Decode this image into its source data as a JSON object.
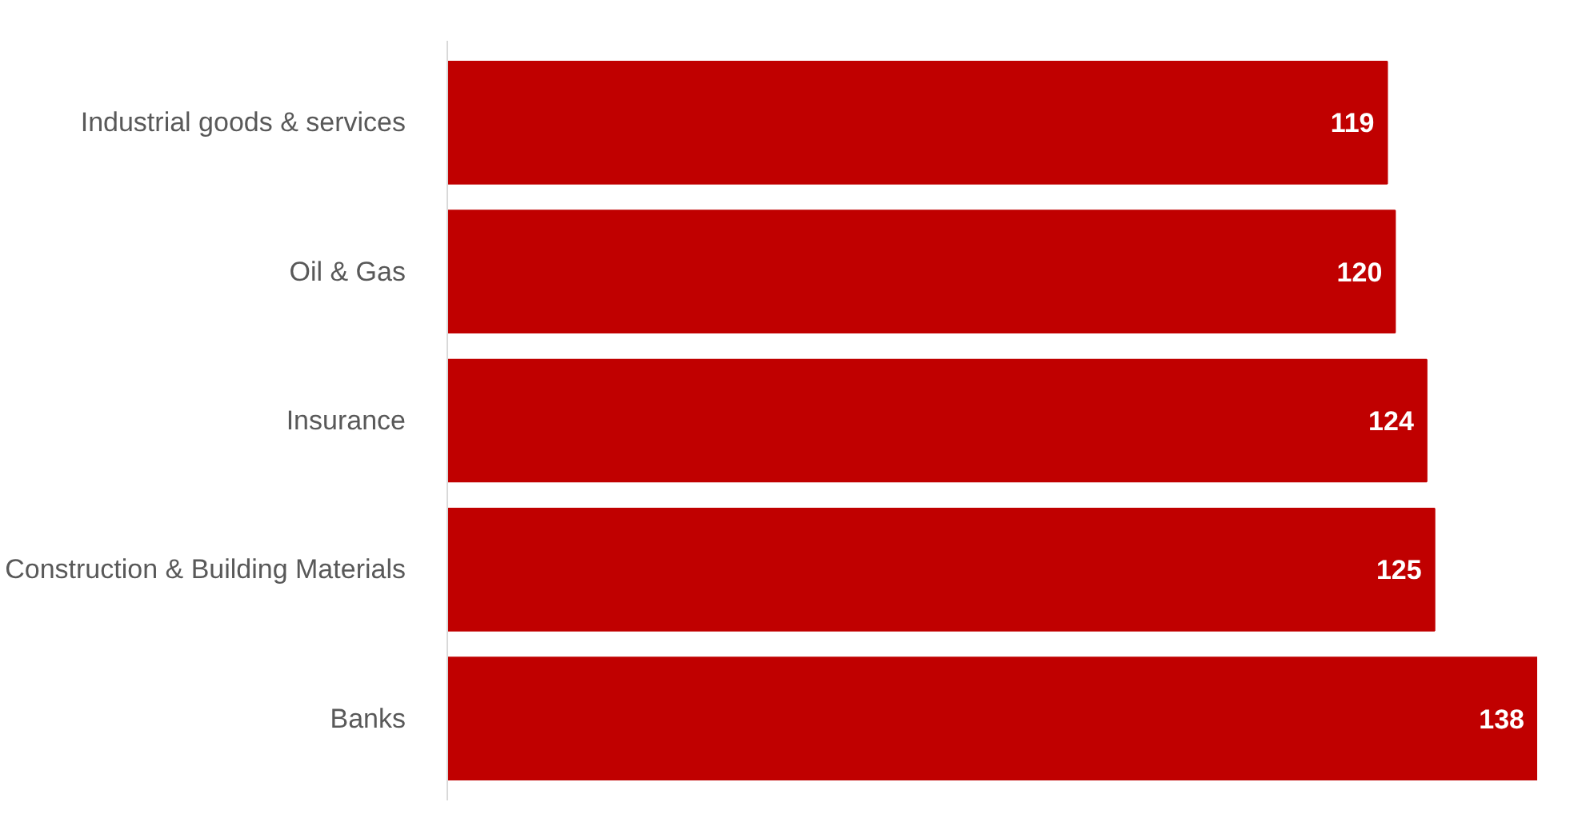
{
  "chart_data": {
    "type": "bar",
    "orientation": "horizontal",
    "categories": [
      "Industrial goods & services",
      "Oil & Gas",
      "Insurance",
      "Construction & Building Materials",
      "Banks"
    ],
    "values": [
      119,
      120,
      124,
      125,
      138
    ],
    "color": "#c00000",
    "data_labels": true,
    "tick_labels": "y",
    "grid": false
  }
}
